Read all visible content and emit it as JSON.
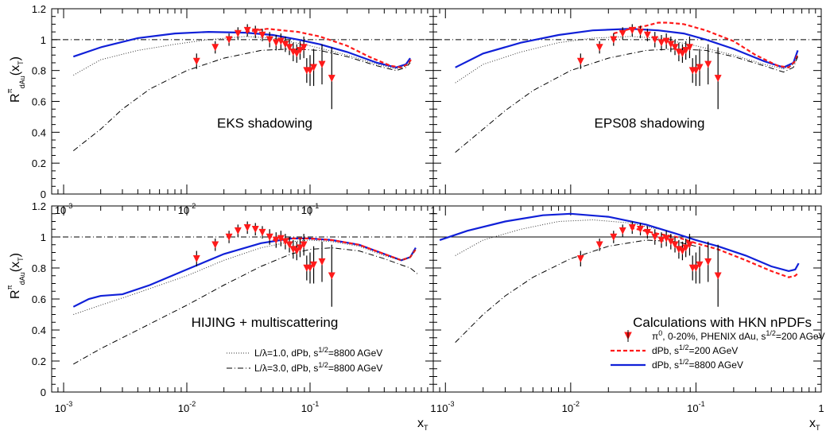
{
  "figure": {
    "colors": {
      "red": "#ff1a1a",
      "blue": "#1020d8",
      "black": "#000000"
    },
    "ylabel": {
      "main": "R",
      "sup": "π",
      "sub": "dAu",
      "arg": "(x",
      "argsub": "T",
      "close": ")"
    },
    "xlabel": {
      "main": "x",
      "sub": "T"
    }
  },
  "chart_data": [
    {
      "type": "line",
      "id": "p1",
      "title": "EKS shadowing",
      "x_scale": "log",
      "xlim": [
        0.0008,
        1
      ],
      "ylim": [
        0,
        1.2
      ],
      "xticks": [
        {
          "v": 0.001,
          "b": "10",
          "e": "-3"
        },
        {
          "v": 0.01,
          "b": "10",
          "e": "-2"
        },
        {
          "v": 0.1,
          "b": "10",
          "e": "-1"
        },
        {
          "v": 1,
          "b": "1",
          "e": ""
        }
      ],
      "yticks": [
        "0",
        "0.2",
        "0.4",
        "0.6",
        "0.8",
        "1",
        "1.2"
      ],
      "reference_line": {
        "y": 1,
        "style": "dashdot"
      },
      "series": [
        {
          "style": "blue",
          "x": [
            0.0012,
            0.002,
            0.004,
            0.008,
            0.015,
            0.03,
            0.05,
            0.08,
            0.12,
            0.2,
            0.35,
            0.5,
            0.6,
            0.65
          ],
          "y": [
            0.89,
            0.95,
            1.01,
            1.04,
            1.05,
            1.045,
            1.03,
            1.0,
            0.97,
            0.92,
            0.85,
            0.82,
            0.84,
            0.88
          ]
        },
        {
          "style": "red_dash",
          "x": [
            0.03,
            0.045,
            0.06,
            0.08,
            0.12,
            0.2,
            0.3,
            0.45,
            0.55,
            0.62,
            0.66
          ],
          "y": [
            1.05,
            1.07,
            1.06,
            1.05,
            1.02,
            0.96,
            0.89,
            0.83,
            0.82,
            0.84,
            0.87
          ]
        },
        {
          "style": "dotted",
          "x": [
            0.0012,
            0.002,
            0.004,
            0.008,
            0.015,
            0.03,
            0.05,
            0.1,
            0.2,
            0.35,
            0.5,
            0.6,
            0.65
          ],
          "y": [
            0.77,
            0.87,
            0.93,
            0.97,
            1.0,
            1.02,
            1.01,
            0.96,
            0.9,
            0.84,
            0.81,
            0.83,
            0.86
          ]
        },
        {
          "style": "dashdot",
          "x": [
            0.0012,
            0.002,
            0.003,
            0.005,
            0.01,
            0.02,
            0.04,
            0.07,
            0.12,
            0.2,
            0.35,
            0.5,
            0.6,
            0.65
          ],
          "y": [
            0.28,
            0.42,
            0.55,
            0.68,
            0.8,
            0.88,
            0.93,
            0.94,
            0.93,
            0.89,
            0.83,
            0.8,
            0.82,
            0.85
          ]
        }
      ],
      "data_points": {
        "x": [
          0.012,
          0.017,
          0.022,
          0.026,
          0.031,
          0.036,
          0.041,
          0.047,
          0.053,
          0.058,
          0.063,
          0.068,
          0.073,
          0.078,
          0.083,
          0.089,
          0.094,
          0.1,
          0.107,
          0.125,
          0.15
        ],
        "y": [
          0.86,
          0.95,
          1.0,
          1.04,
          1.06,
          1.05,
          1.03,
          1.0,
          0.98,
          0.99,
          0.97,
          0.95,
          0.92,
          0.91,
          0.93,
          0.95,
          0.8,
          0.8,
          0.82,
          0.84,
          0.75
        ],
        "err": [
          0.05,
          0.04,
          0.04,
          0.04,
          0.04,
          0.04,
          0.04,
          0.05,
          0.05,
          0.05,
          0.05,
          0.05,
          0.06,
          0.06,
          0.06,
          0.07,
          0.08,
          0.1,
          0.12,
          0.13,
          0.2
        ]
      }
    },
    {
      "type": "line",
      "id": "p2",
      "title": "EPS08 shadowing",
      "x_scale": "log",
      "xlim": [
        0.0008,
        1
      ],
      "ylim": [
        0,
        1.2
      ],
      "xticks": [],
      "yticks": [],
      "reference_line": {
        "y": 1,
        "style": "dashdot"
      },
      "series": [
        {
          "style": "blue",
          "x": [
            0.0012,
            0.002,
            0.004,
            0.008,
            0.015,
            0.03,
            0.05,
            0.08,
            0.12,
            0.2,
            0.35,
            0.5,
            0.6,
            0.65
          ],
          "y": [
            0.82,
            0.91,
            0.98,
            1.03,
            1.06,
            1.07,
            1.06,
            1.04,
            1.0,
            0.94,
            0.86,
            0.82,
            0.85,
            0.93
          ]
        },
        {
          "style": "red_dash",
          "x": [
            0.022,
            0.03,
            0.04,
            0.05,
            0.06,
            0.08,
            0.12,
            0.2,
            0.3,
            0.45,
            0.55,
            0.62,
            0.65
          ],
          "y": [
            1.04,
            1.07,
            1.09,
            1.11,
            1.11,
            1.1,
            1.06,
            0.99,
            0.9,
            0.83,
            0.82,
            0.86,
            0.91
          ]
        },
        {
          "style": "dotted",
          "x": [
            0.0012,
            0.002,
            0.004,
            0.008,
            0.015,
            0.03,
            0.05,
            0.1,
            0.2,
            0.35,
            0.5,
            0.6,
            0.65
          ],
          "y": [
            0.72,
            0.84,
            0.92,
            0.98,
            1.01,
            1.02,
            1.01,
            0.96,
            0.9,
            0.84,
            0.81,
            0.84,
            0.9
          ]
        },
        {
          "style": "dashdot",
          "x": [
            0.0012,
            0.002,
            0.003,
            0.005,
            0.01,
            0.02,
            0.04,
            0.07,
            0.12,
            0.2,
            0.35,
            0.5,
            0.6,
            0.65
          ],
          "y": [
            0.27,
            0.42,
            0.54,
            0.67,
            0.8,
            0.88,
            0.93,
            0.94,
            0.93,
            0.89,
            0.83,
            0.79,
            0.82,
            0.89
          ]
        }
      ],
      "data_points": {
        "x": [
          0.012,
          0.017,
          0.022,
          0.026,
          0.031,
          0.036,
          0.041,
          0.047,
          0.053,
          0.058,
          0.063,
          0.068,
          0.073,
          0.078,
          0.083,
          0.089,
          0.094,
          0.1,
          0.107,
          0.125,
          0.15
        ],
        "y": [
          0.86,
          0.95,
          1.0,
          1.04,
          1.06,
          1.05,
          1.03,
          1.0,
          0.98,
          0.99,
          0.97,
          0.95,
          0.92,
          0.91,
          0.93,
          0.95,
          0.8,
          0.8,
          0.82,
          0.84,
          0.75
        ],
        "err": [
          0.05,
          0.04,
          0.04,
          0.04,
          0.04,
          0.04,
          0.04,
          0.05,
          0.05,
          0.05,
          0.05,
          0.05,
          0.06,
          0.06,
          0.06,
          0.07,
          0.08,
          0.1,
          0.12,
          0.13,
          0.2
        ]
      }
    },
    {
      "type": "line",
      "id": "p3",
      "title": "HIJING + multiscattering",
      "x_scale": "log",
      "xlim": [
        0.0008,
        1
      ],
      "ylim": [
        0,
        1.2
      ],
      "xticks": [
        {
          "v": 0.001,
          "b": "10",
          "e": "-3"
        },
        {
          "v": 0.01,
          "b": "10",
          "e": "-2"
        },
        {
          "v": 0.1,
          "b": "10",
          "e": "-1"
        },
        {
          "v": 1,
          "b": "1",
          "e": ""
        }
      ],
      "yticks": [
        "0",
        "0.2",
        "0.4",
        "0.6",
        "0.8",
        "1",
        "1.2"
      ],
      "reference_line": {
        "y": 1,
        "style": "dashdot"
      },
      "series": [
        {
          "style": "blue",
          "x": [
            0.0012,
            0.0016,
            0.002,
            0.003,
            0.005,
            0.01,
            0.02,
            0.04,
            0.07,
            0.1,
            0.15,
            0.25,
            0.4,
            0.55,
            0.65,
            0.72
          ],
          "y": [
            0.55,
            0.6,
            0.62,
            0.63,
            0.69,
            0.79,
            0.89,
            0.96,
            0.99,
            0.99,
            0.98,
            0.95,
            0.89,
            0.85,
            0.87,
            0.93
          ]
        },
        {
          "style": "red_dash",
          "x": [
            0.05,
            0.07,
            0.1,
            0.15,
            0.25,
            0.4,
            0.55,
            0.65,
            0.72
          ],
          "y": [
            0.98,
            0.99,
            0.99,
            0.98,
            0.95,
            0.89,
            0.85,
            0.87,
            0.92
          ]
        },
        {
          "style": "dotted",
          "x": [
            0.0012,
            0.002,
            0.004,
            0.01,
            0.02,
            0.04,
            0.07,
            0.1,
            0.15,
            0.25,
            0.4,
            0.55,
            0.65,
            0.72
          ],
          "y": [
            0.5,
            0.56,
            0.64,
            0.75,
            0.85,
            0.93,
            0.97,
            0.98,
            0.97,
            0.94,
            0.88,
            0.85,
            0.87,
            0.92
          ]
        },
        {
          "style": "dashdot",
          "x": [
            0.0012,
            0.002,
            0.004,
            0.01,
            0.02,
            0.04,
            0.07,
            0.1,
            0.15,
            0.25,
            0.4,
            0.55,
            0.65,
            0.75
          ],
          "y": [
            0.18,
            0.28,
            0.4,
            0.56,
            0.69,
            0.81,
            0.89,
            0.92,
            0.93,
            0.91,
            0.86,
            0.82,
            0.8,
            0.76
          ]
        }
      ],
      "data_points": {
        "x": [
          0.012,
          0.017,
          0.022,
          0.026,
          0.031,
          0.036,
          0.041,
          0.047,
          0.053,
          0.058,
          0.063,
          0.068,
          0.073,
          0.078,
          0.083,
          0.089,
          0.094,
          0.1,
          0.107,
          0.125,
          0.15
        ],
        "y": [
          0.86,
          0.95,
          1.0,
          1.04,
          1.06,
          1.05,
          1.03,
          1.0,
          0.98,
          0.99,
          0.97,
          0.95,
          0.92,
          0.91,
          0.93,
          0.95,
          0.8,
          0.8,
          0.82,
          0.84,
          0.75
        ],
        "err": [
          0.05,
          0.04,
          0.04,
          0.04,
          0.04,
          0.04,
          0.04,
          0.05,
          0.05,
          0.05,
          0.05,
          0.05,
          0.06,
          0.06,
          0.06,
          0.07,
          0.08,
          0.1,
          0.12,
          0.13,
          0.2
        ]
      },
      "legend": {
        "position": "bottom-right",
        "entries": [
          {
            "style": "dotted",
            "text": "L/λ=1.0, dPb, s",
            "sup": "1/2",
            "tail": "=8800 AGeV"
          },
          {
            "style": "dashdot",
            "text": "L/λ=3.0, dPb, s",
            "sup": "1/2",
            "tail": "=8800 AGeV"
          }
        ]
      }
    },
    {
      "type": "line",
      "id": "p4",
      "title": "Calculations with HKN nPDFs",
      "x_scale": "log",
      "xlim": [
        0.0008,
        1
      ],
      "ylim": [
        0,
        1.2
      ],
      "xticks": [
        {
          "v": 0.001,
          "b": "10",
          "e": "-3"
        },
        {
          "v": 0.01,
          "b": "10",
          "e": "-2"
        },
        {
          "v": 0.1,
          "b": "10",
          "e": "-1"
        },
        {
          "v": 1,
          "b": "1",
          "e": ""
        }
      ],
      "yticks": [],
      "reference_line": {
        "y": 1,
        "style": "solid"
      },
      "series": [
        {
          "style": "blue",
          "x": [
            0.0009,
            0.0015,
            0.003,
            0.006,
            0.01,
            0.02,
            0.04,
            0.07,
            0.1,
            0.15,
            0.25,
            0.4,
            0.55,
            0.62,
            0.66
          ],
          "y": [
            0.98,
            1.04,
            1.1,
            1.14,
            1.15,
            1.13,
            1.08,
            1.02,
            0.98,
            0.94,
            0.88,
            0.81,
            0.78,
            0.79,
            0.83
          ]
        },
        {
          "style": "red_dash",
          "x": [
            0.03,
            0.05,
            0.07,
            0.1,
            0.15,
            0.25,
            0.4,
            0.55,
            0.62,
            0.66
          ],
          "y": [
            1.06,
            1.02,
            1.0,
            0.96,
            0.92,
            0.85,
            0.78,
            0.74,
            0.75,
            0.77
          ]
        },
        {
          "style": "dotted",
          "x": [
            0.0012,
            0.002,
            0.004,
            0.008,
            0.015,
            0.03,
            0.05
          ],
          "y": [
            0.88,
            0.98,
            1.05,
            1.1,
            1.11,
            1.09,
            1.05
          ]
        },
        {
          "style": "dashdot",
          "x": [
            0.0012,
            0.002,
            0.003,
            0.005,
            0.01,
            0.02,
            0.04,
            0.07,
            0.1
          ],
          "y": [
            0.32,
            0.5,
            0.62,
            0.74,
            0.86,
            0.94,
            0.98,
            0.97,
            0.94
          ]
        }
      ],
      "data_points": {
        "x": [
          0.012,
          0.017,
          0.022,
          0.026,
          0.031,
          0.036,
          0.041,
          0.047,
          0.053,
          0.058,
          0.063,
          0.068,
          0.073,
          0.078,
          0.083,
          0.089,
          0.094,
          0.1,
          0.107,
          0.125,
          0.15
        ],
        "y": [
          0.86,
          0.95,
          1.0,
          1.04,
          1.06,
          1.05,
          1.03,
          1.0,
          0.98,
          0.99,
          0.97,
          0.95,
          0.92,
          0.91,
          0.93,
          0.95,
          0.8,
          0.8,
          0.82,
          0.84,
          0.75
        ],
        "err": [
          0.05,
          0.04,
          0.04,
          0.04,
          0.04,
          0.04,
          0.04,
          0.05,
          0.05,
          0.05,
          0.05,
          0.05,
          0.06,
          0.06,
          0.06,
          0.07,
          0.08,
          0.1,
          0.12,
          0.13,
          0.2
        ]
      },
      "legend": {
        "position": "bottom-right",
        "entries": [
          {
            "style": "marker",
            "text": "π",
            "sup": "0",
            "tail": ", 0-20%, PHENIX dAu, s",
            "sup2": "1/2",
            "tail2": "=200 AGeV"
          },
          {
            "style": "red_dash",
            "text": "dPb, s",
            "sup": "1/2",
            "tail": "=200 AGeV"
          },
          {
            "style": "blue",
            "text": "dPb, s",
            "sup": "1/2",
            "tail": "=8800 AGeV"
          }
        ]
      }
    }
  ]
}
